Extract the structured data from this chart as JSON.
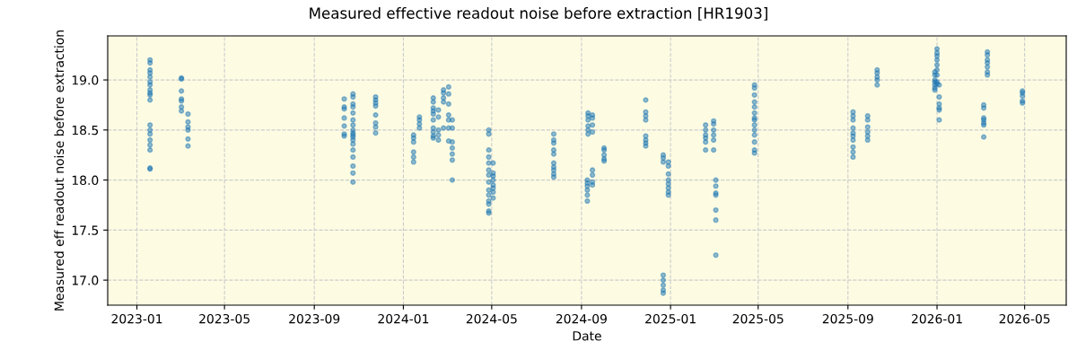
{
  "chart_data": {
    "type": "scatter",
    "title": "Measured effective readout noise before extraction [HR1903]",
    "xlabel": "Date",
    "ylabel": "Measured eff readout noise before extraction",
    "xlim": [
      "2022-11-22",
      "2026-06-27"
    ],
    "ylim": [
      16.75,
      19.44
    ],
    "xticks": [
      {
        "value": "2023-01-01",
        "label": "2023-01"
      },
      {
        "value": "2023-05-01",
        "label": "2023-05"
      },
      {
        "value": "2023-09-01",
        "label": "2023-09"
      },
      {
        "value": "2024-01-01",
        "label": "2024-01"
      },
      {
        "value": "2024-05-01",
        "label": "2024-05"
      },
      {
        "value": "2024-09-01",
        "label": "2024-09"
      },
      {
        "value": "2025-01-01",
        "label": "2025-01"
      },
      {
        "value": "2025-05-01",
        "label": "2025-05"
      },
      {
        "value": "2025-09-01",
        "label": "2025-09"
      },
      {
        "value": "2026-01-01",
        "label": "2026-01"
      },
      {
        "value": "2026-05-01",
        "label": "2026-05"
      }
    ],
    "yticks": [
      {
        "value": 17.0,
        "label": "17.0"
      },
      {
        "value": 17.5,
        "label": "17.5"
      },
      {
        "value": 18.0,
        "label": "18.0"
      },
      {
        "value": 18.5,
        "label": "18.5"
      },
      {
        "value": 19.0,
        "label": "19.0"
      }
    ],
    "grid": true,
    "marker": "circle",
    "series": [
      {
        "color": "#1f77b4",
        "x": [
          "2023-01-19",
          "2023-01-19",
          "2023-01-19",
          "2023-01-19",
          "2023-01-19",
          "2023-01-19",
          "2023-01-19",
          "2023-01-19",
          "2023-01-19",
          "2023-01-19",
          "2023-01-19",
          "2023-01-19",
          "2023-01-19",
          "2023-01-19",
          "2023-01-19",
          "2023-01-19",
          "2023-01-19",
          "2023-01-19",
          "2023-01-19",
          "2023-03-03",
          "2023-03-03",
          "2023-03-03",
          "2023-03-03",
          "2023-03-03",
          "2023-03-03",
          "2023-03-03",
          "2023-03-12",
          "2023-03-12",
          "2023-03-12",
          "2023-03-12",
          "2023-03-12",
          "2023-03-12",
          "2023-10-12",
          "2023-10-12",
          "2023-10-12",
          "2023-10-12",
          "2023-10-12",
          "2023-10-12",
          "2023-10-12",
          "2023-10-24",
          "2023-10-24",
          "2023-10-24",
          "2023-10-24",
          "2023-10-24",
          "2023-10-24",
          "2023-10-24",
          "2023-10-24",
          "2023-10-24",
          "2023-10-24",
          "2023-10-24",
          "2023-10-24",
          "2023-10-24",
          "2023-10-24",
          "2023-10-24",
          "2023-10-24",
          "2023-10-24",
          "2023-10-24",
          "2023-11-24",
          "2023-11-24",
          "2023-11-24",
          "2023-11-24",
          "2023-11-24",
          "2023-11-24",
          "2023-11-24",
          "2023-11-24",
          "2024-01-15",
          "2024-01-15",
          "2024-01-15",
          "2024-01-15",
          "2024-01-15",
          "2024-01-15",
          "2024-01-23",
          "2024-01-23",
          "2024-01-23",
          "2024-01-23",
          "2024-02-11",
          "2024-02-11",
          "2024-02-11",
          "2024-02-11",
          "2024-02-11",
          "2024-02-11",
          "2024-02-11",
          "2024-02-11",
          "2024-02-11",
          "2024-02-11",
          "2024-02-18",
          "2024-02-18",
          "2024-02-18",
          "2024-02-18",
          "2024-02-18",
          "2024-02-25",
          "2024-02-25",
          "2024-02-25",
          "2024-02-25",
          "2024-02-25",
          "2024-03-03",
          "2024-03-03",
          "2024-03-03",
          "2024-03-03",
          "2024-03-03",
          "2024-03-03",
          "2024-03-03",
          "2024-03-08",
          "2024-03-08",
          "2024-03-08",
          "2024-03-08",
          "2024-03-08",
          "2024-03-08",
          "2024-03-08",
          "2024-04-27",
          "2024-04-27",
          "2024-04-27",
          "2024-04-27",
          "2024-04-27",
          "2024-04-27",
          "2024-04-27",
          "2024-04-27",
          "2024-04-27",
          "2024-04-27",
          "2024-04-27",
          "2024-04-27",
          "2024-04-27",
          "2024-04-27",
          "2024-05-03",
          "2024-05-03",
          "2024-05-03",
          "2024-05-03",
          "2024-05-03",
          "2024-05-03",
          "2024-05-03",
          "2024-05-03",
          "2024-07-25",
          "2024-07-25",
          "2024-07-25",
          "2024-07-25",
          "2024-07-25",
          "2024-07-25",
          "2024-07-25",
          "2024-07-25",
          "2024-07-25",
          "2024-07-25",
          "2024-09-09",
          "2024-09-09",
          "2024-09-09",
          "2024-09-09",
          "2024-09-09",
          "2024-09-09",
          "2024-09-10",
          "2024-09-10",
          "2024-09-10",
          "2024-09-10",
          "2024-09-10",
          "2024-09-10",
          "2024-09-16",
          "2024-09-16",
          "2024-09-16",
          "2024-09-16",
          "2024-09-16",
          "2024-09-16",
          "2024-09-16",
          "2024-09-16",
          "2024-10-02",
          "2024-10-02",
          "2024-10-02",
          "2024-10-02",
          "2024-10-02",
          "2024-11-28",
          "2024-11-28",
          "2024-11-28",
          "2024-11-28",
          "2024-11-28",
          "2024-11-28",
          "2024-11-28",
          "2024-11-28",
          "2024-12-22",
          "2024-12-22",
          "2024-12-22",
          "2024-12-22",
          "2024-12-22",
          "2024-12-22",
          "2024-12-22",
          "2024-12-22",
          "2024-12-29",
          "2024-12-29",
          "2024-12-29",
          "2024-12-29",
          "2024-12-29",
          "2024-12-29",
          "2024-12-29",
          "2024-12-29",
          "2025-02-18",
          "2025-02-18",
          "2025-02-18",
          "2025-02-18",
          "2025-02-18",
          "2025-02-18",
          "2025-03-01",
          "2025-03-01",
          "2025-03-01",
          "2025-03-01",
          "2025-03-01",
          "2025-03-01",
          "2025-03-04",
          "2025-03-04",
          "2025-03-04",
          "2025-03-04",
          "2025-03-04",
          "2025-03-04",
          "2025-03-04",
          "2025-04-26",
          "2025-04-26",
          "2025-04-26",
          "2025-04-26",
          "2025-04-26",
          "2025-04-26",
          "2025-04-26",
          "2025-04-26",
          "2025-04-26",
          "2025-04-26",
          "2025-04-26",
          "2025-04-26",
          "2025-04-26",
          "2025-04-26",
          "2025-09-08",
          "2025-09-08",
          "2025-09-08",
          "2025-09-08",
          "2025-09-08",
          "2025-09-08",
          "2025-09-08",
          "2025-09-08",
          "2025-09-08",
          "2025-09-08",
          "2025-09-28",
          "2025-09-28",
          "2025-09-28",
          "2025-09-28",
          "2025-09-28",
          "2025-09-28",
          "2025-10-11",
          "2025-10-11",
          "2025-10-11",
          "2025-10-11",
          "2025-10-11",
          "2025-12-29",
          "2025-12-29",
          "2025-12-29",
          "2025-12-29",
          "2025-12-29",
          "2025-12-29",
          "2025-12-29",
          "2026-01-01",
          "2026-01-01",
          "2026-01-01",
          "2026-01-01",
          "2026-01-01",
          "2026-01-01",
          "2026-01-01",
          "2026-01-01",
          "2026-01-01",
          "2026-01-04",
          "2026-01-04",
          "2026-01-04",
          "2026-01-04",
          "2026-01-04",
          "2026-01-04",
          "2026-03-06",
          "2026-03-06",
          "2026-03-06",
          "2026-03-06",
          "2026-03-06",
          "2026-03-06",
          "2026-03-06",
          "2026-03-11",
          "2026-03-11",
          "2026-03-11",
          "2026-03-11",
          "2026-03-11",
          "2026-03-11",
          "2026-03-11",
          "2026-04-28",
          "2026-04-28",
          "2026-04-28",
          "2026-04-28",
          "2026-04-28"
        ],
        "values": [
          19.2,
          19.17,
          19.1,
          19.07,
          19.03,
          18.98,
          18.95,
          18.9,
          18.87,
          18.85,
          18.8,
          18.55,
          18.5,
          18.46,
          18.4,
          18.35,
          18.3,
          18.12,
          18.11,
          19.02,
          19.01,
          18.89,
          18.81,
          18.79,
          18.73,
          18.69,
          18.66,
          18.58,
          18.53,
          18.5,
          18.41,
          18.34,
          18.81,
          18.73,
          18.71,
          18.62,
          18.54,
          18.46,
          18.44,
          18.86,
          18.83,
          18.76,
          18.73,
          18.67,
          18.6,
          18.5,
          18.45,
          18.4,
          18.36,
          18.3,
          18.23,
          18.14,
          18.07,
          17.98,
          18.55,
          18.47,
          18.43,
          18.83,
          18.8,
          18.77,
          18.74,
          18.65,
          18.57,
          18.53,
          18.47,
          18.45,
          18.42,
          18.38,
          18.28,
          18.23,
          18.18,
          18.63,
          18.6,
          18.56,
          18.52,
          18.82,
          18.78,
          18.72,
          18.69,
          18.66,
          18.6,
          18.52,
          18.48,
          18.44,
          18.42,
          18.7,
          18.63,
          18.5,
          18.45,
          18.4,
          18.9,
          18.87,
          18.82,
          18.78,
          18.52,
          18.93,
          18.86,
          18.76,
          18.65,
          18.6,
          18.52,
          18.39,
          18.6,
          18.52,
          18.38,
          18.32,
          18.26,
          18.2,
          18.0,
          18.5,
          18.46,
          18.3,
          18.23,
          18.17,
          18.1,
          18.05,
          17.98,
          17.9,
          17.85,
          17.79,
          17.76,
          17.69,
          17.67,
          18.17,
          18.07,
          18.04,
          18.0,
          17.95,
          17.92,
          17.88,
          17.82,
          18.46,
          18.4,
          18.37,
          18.3,
          18.26,
          18.17,
          18.13,
          18.1,
          18.06,
          18.03,
          18.0,
          17.97,
          17.94,
          17.9,
          17.85,
          17.79,
          18.67,
          18.64,
          18.6,
          18.54,
          18.5,
          18.46,
          18.65,
          18.62,
          18.55,
          18.48,
          18.1,
          18.05,
          17.98,
          17.95,
          18.32,
          18.3,
          18.25,
          18.21,
          18.19,
          18.8,
          18.68,
          18.64,
          18.6,
          18.44,
          18.4,
          18.37,
          18.34,
          18.25,
          18.22,
          18.18,
          17.05,
          17.0,
          16.95,
          16.9,
          16.87,
          18.18,
          18.14,
          18.06,
          18.0,
          17.96,
          17.92,
          17.88,
          17.85,
          18.55,
          18.5,
          18.45,
          18.42,
          18.38,
          18.3,
          18.59,
          18.56,
          18.5,
          18.45,
          18.4,
          18.3,
          18.0,
          17.94,
          17.87,
          17.85,
          17.7,
          17.6,
          17.25,
          18.95,
          18.92,
          18.85,
          18.78,
          18.73,
          18.67,
          18.62,
          18.6,
          18.55,
          18.5,
          18.45,
          18.38,
          18.3,
          18.27,
          18.68,
          18.64,
          18.6,
          18.52,
          18.47,
          18.44,
          18.4,
          18.33,
          18.28,
          18.23,
          18.64,
          18.6,
          18.53,
          18.48,
          18.44,
          18.4,
          19.1,
          19.07,
          19.03,
          19.0,
          18.95,
          19.0,
          18.98,
          18.95,
          18.92,
          18.9,
          19.05,
          19.08,
          19.31,
          19.27,
          19.24,
          19.2,
          19.15,
          19.1,
          19.05,
          18.98,
          18.96,
          18.95,
          18.83,
          18.76,
          18.72,
          18.7,
          18.6,
          18.75,
          18.72,
          18.62,
          18.6,
          18.57,
          18.55,
          18.43,
          19.28,
          19.25,
          19.2,
          19.17,
          19.13,
          19.08,
          19.05,
          18.89,
          18.87,
          18.84,
          18.79,
          18.77
        ]
      }
    ]
  }
}
